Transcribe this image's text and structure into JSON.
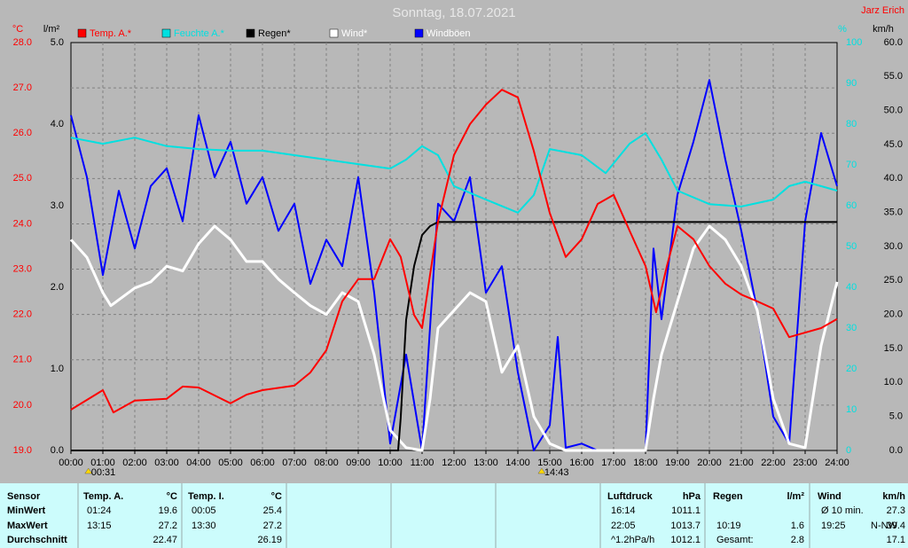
{
  "chart_data": {
    "type": "line",
    "title": "Sonntag, 18.07.2021",
    "author": "Jarz Erich",
    "xlim": [
      0,
      24
    ],
    "xticks": [
      {
        "value": 0,
        "label": "00:00"
      },
      {
        "value": 1,
        "label": "01:00"
      },
      {
        "value": 2,
        "label": "02:00"
      },
      {
        "value": 3,
        "label": "03:00"
      },
      {
        "value": 4,
        "label": "04:00"
      },
      {
        "value": 5,
        "label": "05:00"
      },
      {
        "value": 6,
        "label": "06:00"
      },
      {
        "value": 7,
        "label": "07:00"
      },
      {
        "value": 8,
        "label": "08:00"
      },
      {
        "value": 9,
        "label": "09:00"
      },
      {
        "value": 10,
        "label": "10:00"
      },
      {
        "value": 11,
        "label": "11:00"
      },
      {
        "value": 12,
        "label": "12:00"
      },
      {
        "value": 13,
        "label": "13:00"
      },
      {
        "value": 14,
        "label": "14:00"
      },
      {
        "value": 15,
        "label": "15:00"
      },
      {
        "value": 16,
        "label": "16:00"
      },
      {
        "value": 17,
        "label": "17:00"
      },
      {
        "value": 18,
        "label": "18:00"
      },
      {
        "value": 19,
        "label": "19:00"
      },
      {
        "value": 20,
        "label": "20:00"
      },
      {
        "value": 21,
        "label": "21:00"
      },
      {
        "value": 22,
        "label": "22:00"
      },
      {
        "value": 23,
        "label": "23:00"
      },
      {
        "value": 24,
        "label": "24:00"
      }
    ],
    "axes": [
      {
        "unit": "°C",
        "color": "#ff0000",
        "grid": true,
        "lim": [
          19,
          28
        ],
        "ticks": [
          {
            "value": 19,
            "label": "19.0"
          },
          {
            "value": 20,
            "label": "20.0"
          },
          {
            "value": 21,
            "label": "21.0"
          },
          {
            "value": 22,
            "label": "22.0"
          },
          {
            "value": 23,
            "label": "23.0"
          },
          {
            "value": 24,
            "label": "24.0"
          },
          {
            "value": 25,
            "label": "25.0"
          },
          {
            "value": 26,
            "label": "26.0"
          },
          {
            "value": 27,
            "label": "27.0"
          },
          {
            "value": 28,
            "label": "28.0"
          }
        ]
      },
      {
        "unit": "l/m²",
        "color": "#000000",
        "lim": [
          0,
          5
        ],
        "ticks": [
          {
            "value": 0,
            "label": "0.0"
          },
          {
            "value": 1,
            "label": "1.0"
          },
          {
            "value": 2,
            "label": "2.0"
          },
          {
            "value": 3,
            "label": "3.0"
          },
          {
            "value": 4,
            "label": "4.0"
          },
          {
            "value": 5,
            "label": "5.0"
          }
        ]
      },
      {
        "unit": "%",
        "color": "#00e0e0",
        "lim": [
          0,
          100
        ],
        "ticks": [
          0,
          10,
          20,
          30,
          40,
          50,
          60,
          70,
          80,
          90,
          100
        ]
      },
      {
        "unit": "km/h",
        "color": "#000000",
        "lim": [
          0,
          60
        ],
        "ticks": [
          {
            "value": 0,
            "label": "0.0"
          },
          {
            "value": 5,
            "label": "5.0"
          },
          {
            "value": 10,
            "label": "10.0"
          },
          {
            "value": 15,
            "label": "15.0"
          },
          {
            "value": 20,
            "label": "20.0"
          },
          {
            "value": 25,
            "label": "25.0"
          },
          {
            "value": 30,
            "label": "30.0"
          },
          {
            "value": 35,
            "label": "35.0"
          },
          {
            "value": 40,
            "label": "40.0"
          },
          {
            "value": 45,
            "label": "45.0"
          },
          {
            "value": 50,
            "label": "50.0"
          },
          {
            "value": 55,
            "label": "55.0"
          },
          {
            "value": 60,
            "label": "60.0"
          }
        ]
      }
    ],
    "series": [
      {
        "name": "Temp. A.*",
        "color": "#ff0000",
        "legend_text_color": "#ff0000",
        "axis": 0,
        "x": [
          0,
          1,
          1.33,
          2,
          3,
          3.5,
          4,
          5,
          5.5,
          6,
          7,
          7.5,
          8,
          8.5,
          9,
          9.5,
          10,
          10.33,
          10.75,
          11,
          11.5,
          12,
          12.5,
          13,
          13.5,
          14,
          14.5,
          15,
          15.5,
          16,
          16.5,
          17,
          17.5,
          18,
          18.33,
          18.67,
          19,
          19.5,
          20,
          20.5,
          21,
          21.5,
          22,
          22.5,
          23,
          23.5,
          24
        ],
        "values": [
          19.9,
          20.33,
          19.84,
          20.1,
          20.14,
          20.41,
          20.39,
          20.04,
          20.23,
          20.33,
          20.43,
          20.72,
          21.21,
          22.29,
          22.78,
          22.78,
          23.66,
          23.27,
          21.99,
          21.7,
          24.05,
          25.52,
          26.2,
          26.63,
          26.96,
          26.79,
          25.61,
          24.24,
          23.27,
          23.66,
          24.44,
          24.64,
          23.85,
          23.07,
          22.05,
          23.07,
          23.95,
          23.66,
          23.07,
          22.68,
          22.44,
          22.29,
          22.13,
          21.5,
          21.6,
          21.7,
          21.9
        ]
      },
      {
        "name": "Feuchte A.*",
        "color": "#00e0e0",
        "legend_text_color": "#00e0e0",
        "axis": 2,
        "x": [
          0,
          1,
          2,
          3,
          4,
          5,
          6,
          7,
          8,
          9,
          10,
          10.5,
          11,
          11.5,
          12,
          13,
          14,
          14.5,
          15,
          16,
          16.75,
          17.5,
          18,
          18.5,
          19,
          20,
          21,
          22,
          22.5,
          23,
          24
        ],
        "values": [
          76.7,
          75.2,
          76.7,
          74.6,
          73.9,
          73.5,
          73.5,
          72.4,
          71.3,
          70.2,
          69.1,
          71.3,
          74.6,
          72.4,
          64.8,
          61.5,
          58.3,
          62.6,
          73.9,
          72.4,
          68.0,
          75.2,
          77.8,
          71.3,
          63.7,
          60.4,
          59.8,
          61.5,
          64.8,
          65.9,
          63.7
        ]
      },
      {
        "name": "Regen*",
        "color": "#000000",
        "legend_text_color": "#000000",
        "axis": 1,
        "x": [
          0,
          10.25,
          10.33,
          10.5,
          10.75,
          11,
          11.25,
          11.5,
          24
        ],
        "values": [
          0,
          0,
          0.4,
          1.6,
          2.26,
          2.64,
          2.75,
          2.8,
          2.8
        ]
      },
      {
        "name": "Wind*",
        "color": "#ffffff",
        "legend_text_color": "#ffffff",
        "axis": 3,
        "x": [
          0,
          0.5,
          1,
          1.25,
          2,
          2.5,
          3,
          3.5,
          4,
          4.5,
          5,
          5.5,
          6,
          6.5,
          7,
          7.5,
          8,
          8.5,
          9,
          9.5,
          10,
          10.5,
          11,
          11.25,
          11.5,
          12,
          12.5,
          13,
          13.5,
          14,
          14.5,
          15,
          15.5,
          18,
          18.25,
          18.5,
          19,
          19.5,
          20,
          20.5,
          21,
          21.5,
          22,
          22.5,
          23,
          23.5,
          24
        ],
        "values": [
          31,
          28.4,
          23.2,
          21.3,
          23.9,
          24.8,
          27.1,
          26.4,
          30.4,
          33,
          31,
          27.8,
          27.8,
          25.2,
          23.2,
          21.3,
          20,
          23.2,
          21.9,
          14.1,
          3,
          0.4,
          0,
          7.6,
          18,
          20.6,
          23.2,
          21.9,
          11.5,
          15.4,
          5,
          1,
          0,
          0,
          7.6,
          14.1,
          21.9,
          29.7,
          33,
          31,
          27.1,
          20.6,
          7.6,
          1,
          0.4,
          15.4,
          24.8
        ]
      },
      {
        "name": "Windböen",
        "color": "#0000ff",
        "legend_text_color": "#ffffff",
        "axis": 3,
        "x": [
          0,
          0.5,
          1,
          1.5,
          2,
          2.5,
          3,
          3.5,
          4,
          4.5,
          5,
          5.5,
          6,
          6.5,
          7,
          7.5,
          8,
          8.5,
          9,
          9.5,
          10,
          10.5,
          11,
          11.5,
          12,
          12.5,
          13,
          13.5,
          14,
          14.5,
          15,
          15.25,
          15.5,
          16,
          16.5,
          18,
          18.25,
          18.5,
          19,
          19.5,
          20,
          20.5,
          21,
          21.5,
          22,
          22.5,
          23,
          23.5,
          24
        ],
        "values": [
          49.3,
          40.2,
          25.8,
          38.2,
          29.7,
          38.9,
          41.5,
          33.7,
          49.3,
          40.2,
          45.4,
          36.3,
          40.2,
          32.3,
          36.3,
          24.5,
          31,
          27.1,
          40.2,
          23.2,
          1,
          14.1,
          0,
          36.3,
          33.7,
          40.2,
          23.2,
          27.1,
          11.5,
          0,
          3.7,
          16.7,
          0.4,
          1,
          0,
          0,
          29.7,
          19.3,
          37.6,
          45.4,
          54.5,
          42.8,
          32.3,
          20.6,
          5,
          1,
          33.7,
          46.7,
          38.9
        ]
      }
    ],
    "annotations": [
      {
        "x": 0.52,
        "label": "00:31"
      },
      {
        "x": 14.72,
        "label": "14:43"
      }
    ]
  },
  "table": {
    "label_column": [
      "Sensor",
      "MinWert",
      "MaxWert",
      "Durchschnitt"
    ],
    "panels": [
      {
        "title": "Temp. A.",
        "unit": "°C",
        "rows": [
          [
            "01:24",
            "19.6"
          ],
          [
            "13:15",
            "27.2"
          ],
          [
            "22.47"
          ]
        ]
      },
      {
        "title": "Temp. I.",
        "unit": "°C",
        "rows": [
          [
            "00:05",
            "25.4"
          ],
          [
            "13:30",
            "27.2"
          ],
          [
            "26.19"
          ]
        ]
      },
      {
        "title": "Luftdruck",
        "unit": "hPa",
        "rows": [
          [
            "16:14",
            "1011.1"
          ],
          [
            "22:05",
            "1013.7"
          ],
          [
            "^1.2hPa/h",
            "1012.1"
          ]
        ]
      },
      {
        "title": "Regen",
        "unit": "l/m²",
        "rows": [
          [],
          [
            "10:19",
            "1.6"
          ],
          [
            "Gesamt:",
            "2.8"
          ]
        ]
      },
      {
        "title": "Wind",
        "unit": "km/h",
        "rows": [
          [
            "Ø 10 min.",
            "27.3"
          ],
          [
            "19:25",
            "N-NW",
            "39.4"
          ],
          [
            "17.1"
          ]
        ]
      }
    ]
  }
}
